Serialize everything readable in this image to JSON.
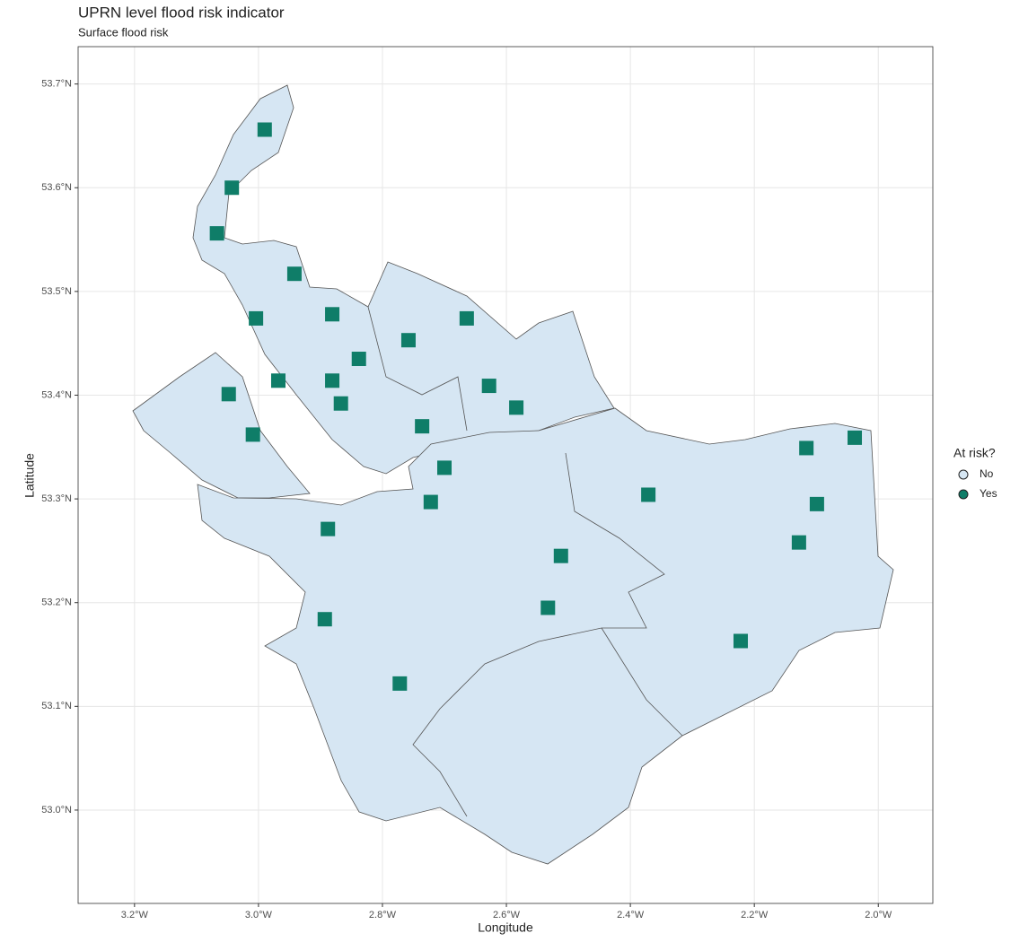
{
  "chart_data": {
    "type": "scatter",
    "title": "UPRN level flood risk indicator",
    "subtitle": "Surface flood risk",
    "x_label": "Longitude",
    "y_label": "Latitude",
    "legend_title": "At risk?",
    "legend_position": "right",
    "grid": true,
    "xlim": [
      -3.291,
      -1.912
    ],
    "ylim": [
      52.91,
      53.736
    ],
    "xticks": [
      {
        "value": -3.2,
        "label": "3.2°W"
      },
      {
        "value": -3.0,
        "label": "3.0°W"
      },
      {
        "value": -2.8,
        "label": "2.8°W"
      },
      {
        "value": -2.6,
        "label": "2.6°W"
      },
      {
        "value": -2.4,
        "label": "2.4°W"
      },
      {
        "value": -2.2,
        "label": "2.2°W"
      },
      {
        "value": -2.0,
        "label": "2.0°W"
      }
    ],
    "yticks": [
      {
        "value": 53.0,
        "label": "53.0°N"
      },
      {
        "value": 53.1,
        "label": "53.1°N"
      },
      {
        "value": 53.2,
        "label": "53.2°N"
      },
      {
        "value": 53.3,
        "label": "53.3°N"
      },
      {
        "value": 53.4,
        "label": "53.4°N"
      },
      {
        "value": 53.5,
        "label": "53.5°N"
      },
      {
        "value": 53.6,
        "label": "53.6°N"
      },
      {
        "value": 53.7,
        "label": "53.7°N"
      }
    ],
    "series": [
      {
        "name": "No",
        "color": "#d6e6f3"
      },
      {
        "name": "Yes",
        "color": "#0f7d68",
        "x": [
          -2.99,
          -3.043,
          -3.067,
          -3.004,
          -2.942,
          -2.881,
          -2.758,
          -2.664,
          -2.736,
          -2.881,
          -2.968,
          -3.009,
          -3.048,
          -2.584,
          -2.628,
          -2.7,
          -2.722,
          -2.888,
          -2.893,
          -2.512,
          -2.533,
          -2.772,
          -2.371,
          -2.128,
          -2.116,
          -2.038,
          -2.099,
          -2.222,
          -2.838,
          -2.867
        ],
        "values": [
          53.656,
          53.6,
          53.556,
          53.474,
          53.517,
          53.478,
          53.453,
          53.474,
          53.37,
          53.414,
          53.414,
          53.362,
          53.401,
          53.388,
          53.409,
          53.33,
          53.297,
          53.271,
          53.184,
          53.245,
          53.195,
          53.122,
          53.304,
          53.258,
          53.349,
          53.359,
          53.295,
          53.163,
          53.435,
          53.392
        ]
      }
    ]
  }
}
